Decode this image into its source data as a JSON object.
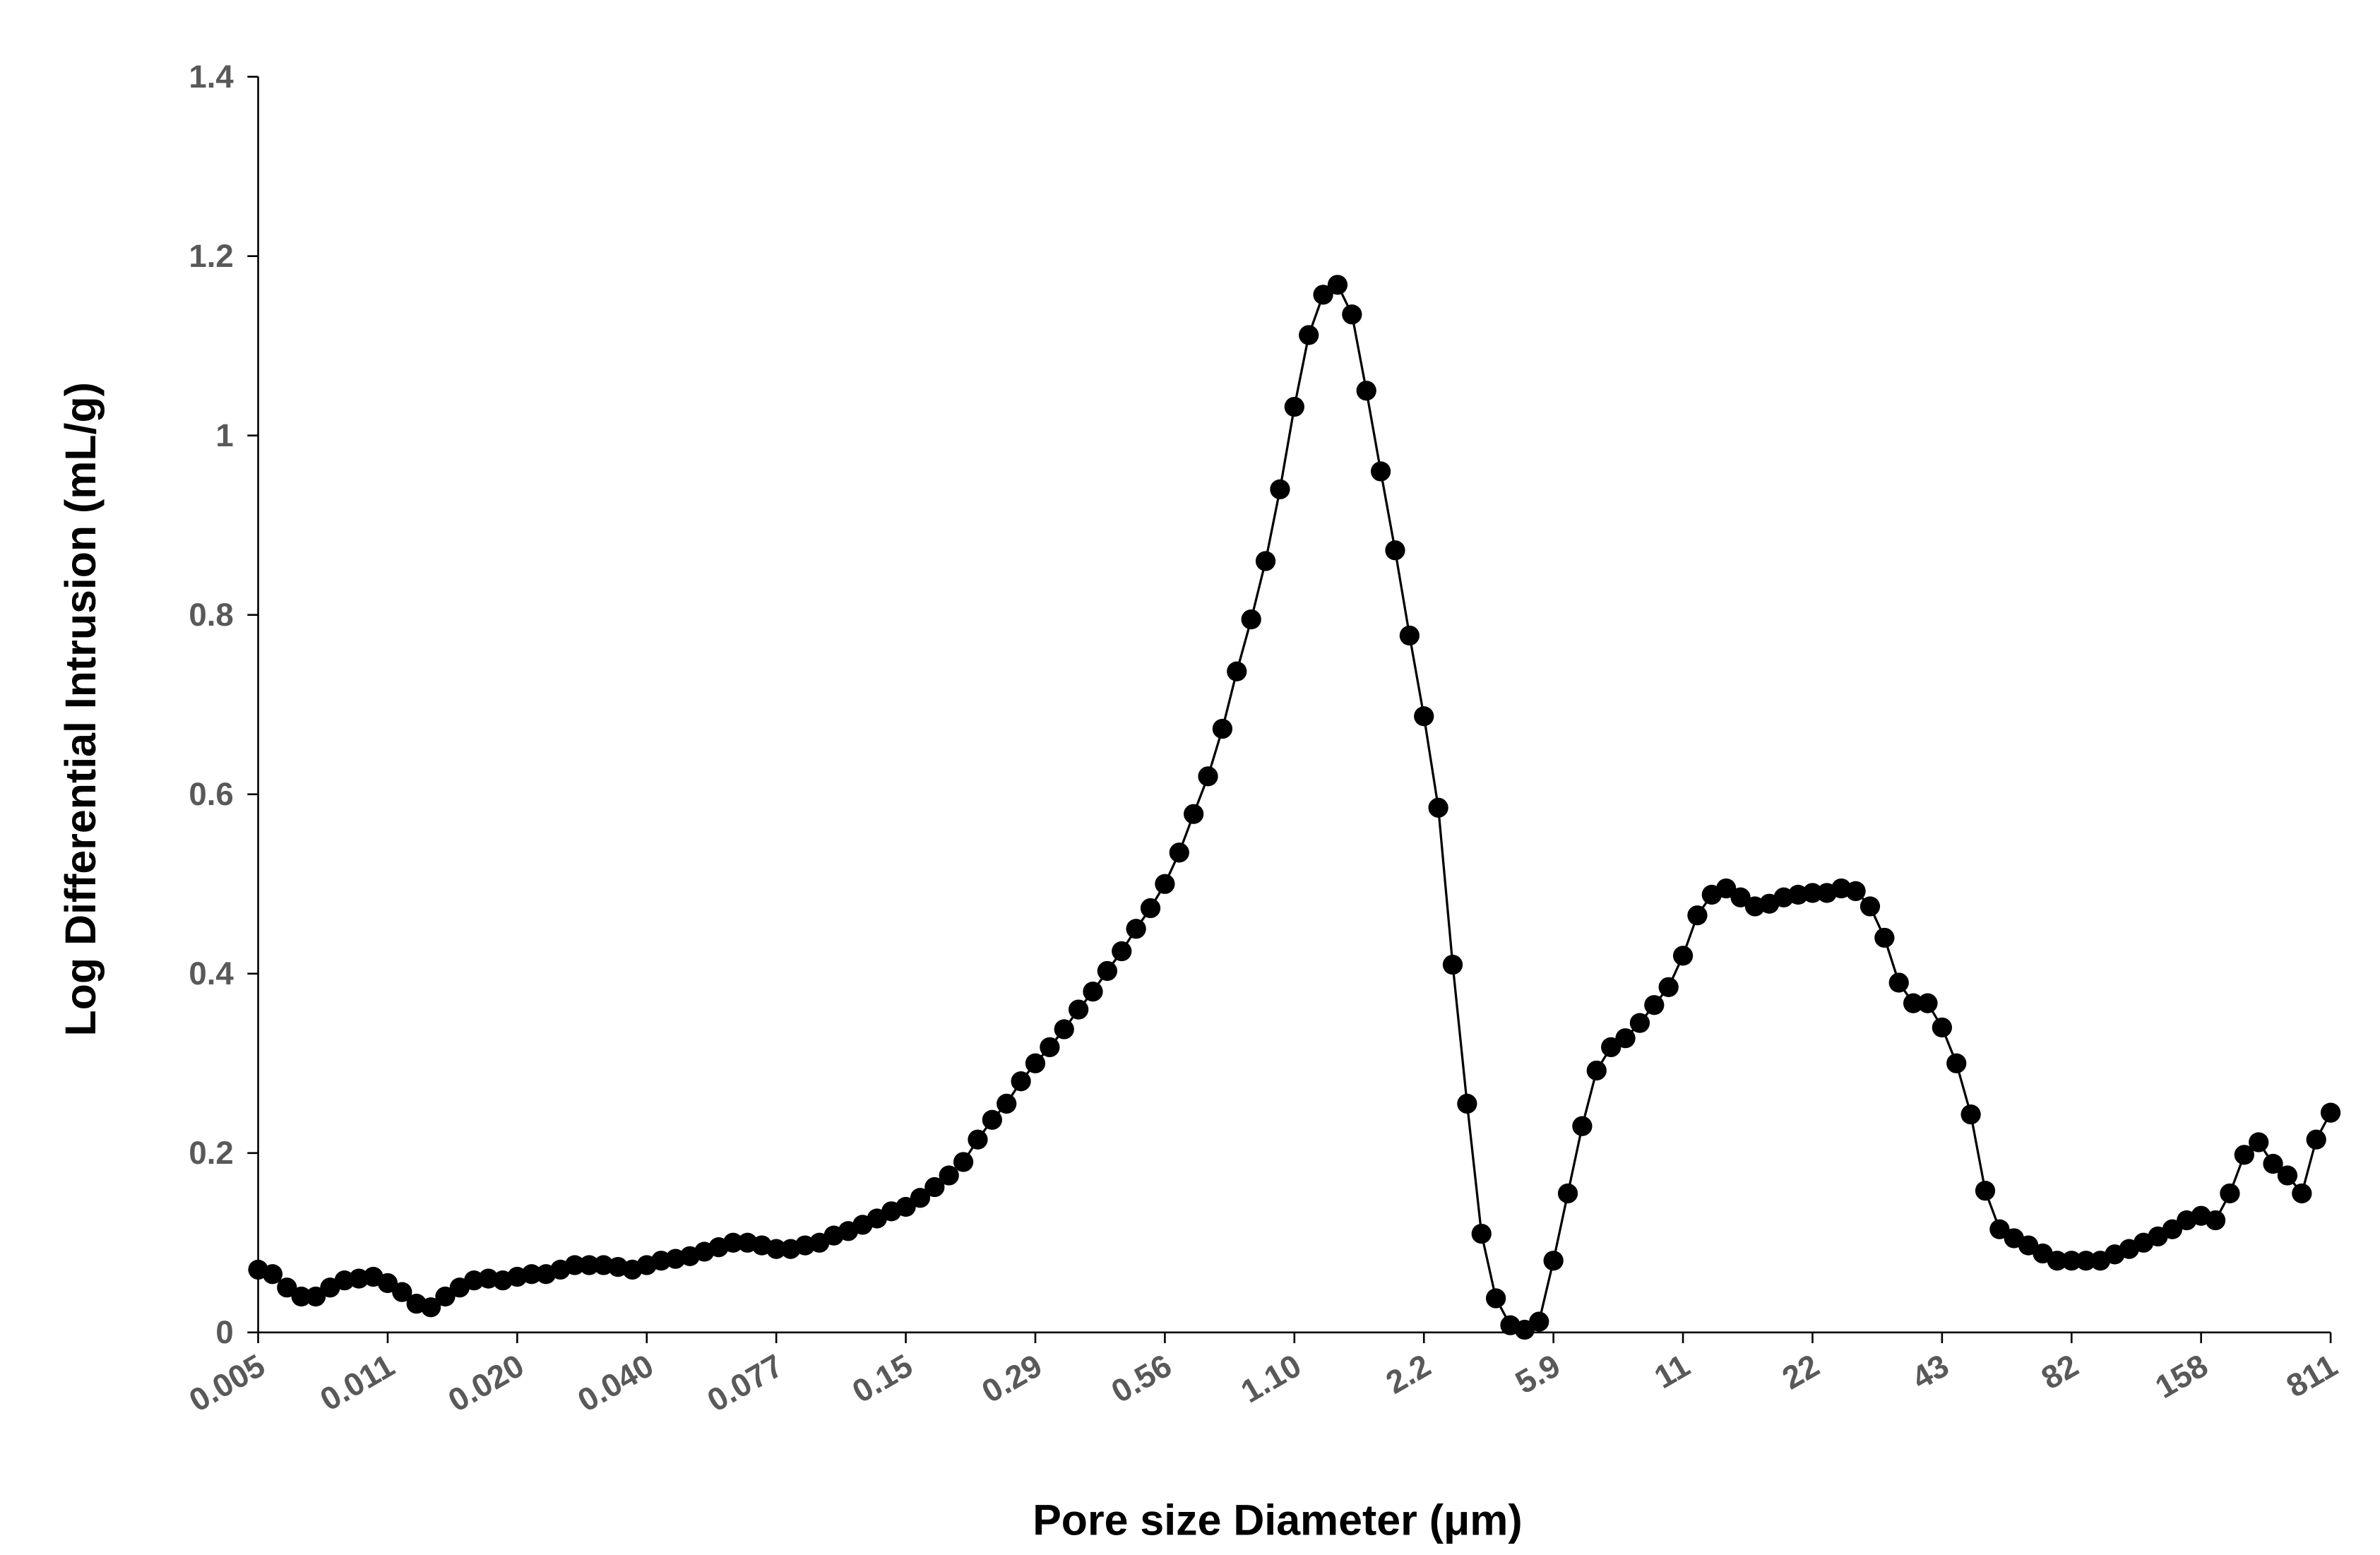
{
  "chart_data": {
    "type": "line",
    "x_label": "Pore size Diameter (μm)",
    "y_label": "Log Differential Intrusion (mL/g)",
    "categories": [
      "0.005",
      null,
      null,
      null,
      null,
      null,
      null,
      null,
      null,
      "0.011",
      null,
      null,
      null,
      null,
      null,
      null,
      null,
      null,
      "0.020",
      null,
      null,
      null,
      null,
      null,
      null,
      null,
      null,
      "0.040",
      null,
      null,
      null,
      null,
      null,
      null,
      null,
      null,
      "0.077",
      null,
      null,
      null,
      null,
      null,
      null,
      null,
      null,
      "0.15",
      null,
      null,
      null,
      null,
      null,
      null,
      null,
      null,
      "0.29",
      null,
      null,
      null,
      null,
      null,
      null,
      null,
      null,
      "0.56",
      null,
      null,
      null,
      null,
      null,
      null,
      null,
      null,
      "1.10",
      null,
      null,
      null,
      null,
      null,
      null,
      null,
      null,
      "2.2",
      null,
      null,
      null,
      null,
      null,
      null,
      null,
      null,
      "5.9",
      null,
      null,
      null,
      null,
      null,
      null,
      null,
      null,
      "11",
      null,
      null,
      null,
      null,
      null,
      null,
      null,
      null,
      "22",
      null,
      null,
      null,
      null,
      null,
      null,
      null,
      null,
      "43",
      null,
      null,
      null,
      null,
      null,
      null,
      null,
      null,
      "82",
      null,
      null,
      null,
      null,
      null,
      null,
      null,
      null,
      "158",
      null,
      null,
      null,
      null,
      null,
      null,
      null,
      null,
      "811"
    ],
    "values": [
      0.07,
      0.065,
      0.05,
      0.04,
      0.04,
      0.05,
      0.058,
      0.06,
      0.062,
      0.055,
      0.045,
      0.032,
      0.028,
      0.04,
      0.05,
      0.058,
      0.06,
      0.058,
      0.062,
      0.065,
      0.065,
      0.07,
      0.075,
      0.075,
      0.075,
      0.073,
      0.07,
      0.075,
      0.08,
      0.082,
      0.085,
      0.09,
      0.095,
      0.1,
      0.1,
      0.097,
      0.093,
      0.093,
      0.097,
      0.1,
      0.108,
      0.113,
      0.12,
      0.127,
      0.135,
      0.14,
      0.15,
      0.162,
      0.175,
      0.19,
      0.215,
      0.237,
      0.255,
      0.28,
      0.3,
      0.318,
      0.338,
      0.36,
      0.38,
      0.403,
      0.425,
      0.45,
      0.473,
      0.5,
      0.535,
      0.578,
      0.62,
      0.673,
      0.737,
      0.795,
      0.86,
      0.94,
      1.032,
      1.112,
      1.157,
      1.168,
      1.135,
      1.05,
      0.96,
      0.872,
      0.777,
      0.687,
      0.585,
      0.41,
      0.255,
      0.11,
      0.038,
      0.008,
      0.003,
      0.012,
      0.08,
      0.155,
      0.23,
      0.292,
      0.318,
      0.328,
      0.345,
      0.365,
      0.385,
      0.42,
      0.465,
      0.488,
      0.495,
      0.485,
      0.475,
      0.478,
      0.485,
      0.488,
      0.49,
      0.49,
      0.495,
      0.492,
      0.475,
      0.44,
      0.39,
      0.367,
      0.367,
      0.34,
      0.3,
      0.243,
      0.158,
      0.115,
      0.105,
      0.097,
      0.088,
      0.08,
      0.08,
      0.08,
      0.08,
      0.087,
      0.093,
      0.1,
      0.107,
      0.115,
      0.125,
      0.13,
      0.125,
      0.155,
      0.198,
      0.212,
      0.188,
      0.175,
      0.155,
      0.215,
      0.245
    ],
    "color": "#000000",
    "ylim": [
      0,
      1.4
    ],
    "yticks": [
      0,
      0.2,
      0.4,
      0.6,
      0.8,
      1,
      1.2,
      1.4
    ],
    "grid": false
  }
}
